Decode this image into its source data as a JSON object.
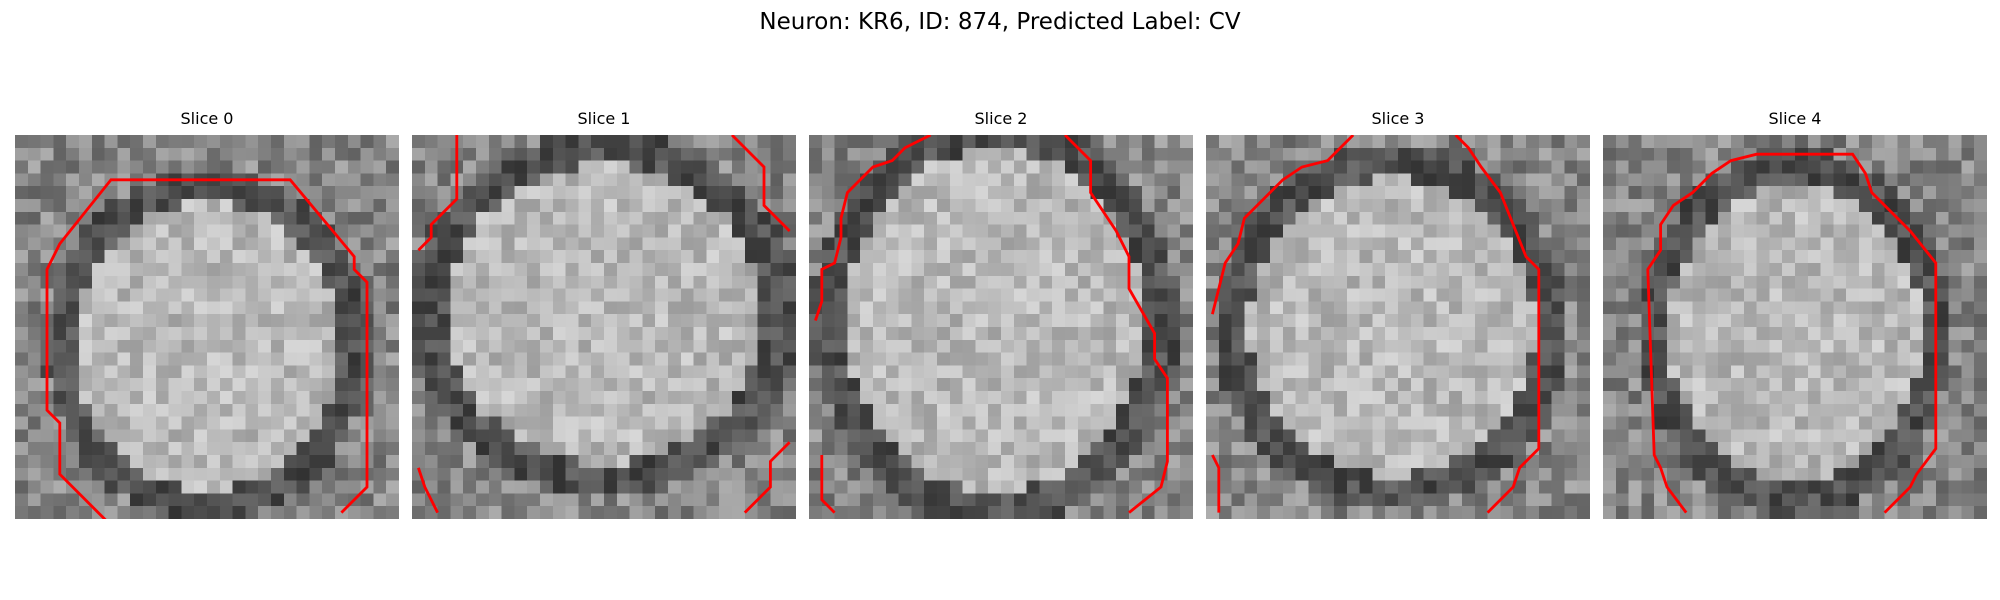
{
  "figure": {
    "title": "Neuron: KR6, ID: 874, Predicted Label: CV"
  },
  "slices": [
    {
      "title": "Slice 0",
      "boundary_color": "#ff0000",
      "contours": [
        [
          [
            7.5,
            30.5
          ],
          [
            3.5,
            26.5
          ],
          [
            3.5,
            22.5
          ],
          [
            2.5,
            21.5
          ],
          [
            2.5,
            10.5
          ],
          [
            3.5,
            8.5
          ],
          [
            7.5,
            3.5
          ],
          [
            21.5,
            3.5
          ],
          [
            26.5,
            9.5
          ],
          [
            26.5,
            10.5
          ],
          [
            27.5,
            11.5
          ],
          [
            27.5,
            27.5
          ],
          [
            25.5,
            29.5
          ]
        ]
      ]
    },
    {
      "title": "Slice 1",
      "boundary_color": "#ff0000",
      "contours": [
        [
          [
            0.5,
            9.0
          ],
          [
            1.5,
            8.0
          ],
          [
            1.5,
            7.0
          ],
          [
            2.5,
            6.0
          ],
          [
            3.5,
            5.0
          ],
          [
            3.5,
            0.0
          ]
        ],
        [
          [
            25.0,
            0.0
          ],
          [
            27.5,
            2.5
          ],
          [
            27.5,
            5.5
          ],
          [
            29.5,
            7.5
          ]
        ],
        [
          [
            0.5,
            26.0
          ],
          [
            1.0,
            27.5
          ],
          [
            2.0,
            29.5
          ]
        ],
        [
          [
            26.0,
            29.5
          ],
          [
            28.0,
            27.5
          ],
          [
            28.0,
            25.5
          ],
          [
            29.5,
            24.0
          ]
        ]
      ]
    },
    {
      "title": "Slice 2",
      "boundary_color": "#ff0000",
      "contours": [
        [
          [
            0.5,
            14.5
          ],
          [
            1.0,
            13.0
          ],
          [
            1.0,
            10.5
          ],
          [
            2.0,
            10.0
          ],
          [
            2.5,
            8.0
          ],
          [
            2.5,
            6.5
          ],
          [
            3.0,
            4.5
          ],
          [
            4.0,
            3.5
          ],
          [
            5.0,
            2.5
          ],
          [
            6.5,
            2.0
          ],
          [
            7.5,
            1.0
          ],
          [
            9.5,
            0.0
          ]
        ],
        [
          [
            20.0,
            0.0
          ],
          [
            22.0,
            2.0
          ],
          [
            22.0,
            4.5
          ],
          [
            24.0,
            7.5
          ],
          [
            25.0,
            9.5
          ],
          [
            25.0,
            12.0
          ],
          [
            27.0,
            15.5
          ],
          [
            27.0,
            17.5
          ],
          [
            28.0,
            19.0
          ],
          [
            28.0,
            25.5
          ],
          [
            27.5,
            27.5
          ],
          [
            25.0,
            29.5
          ]
        ],
        [
          [
            1.0,
            25.0
          ],
          [
            1.0,
            28.5
          ],
          [
            2.0,
            29.5
          ]
        ]
      ]
    },
    {
      "title": "Slice 3",
      "boundary_color": "#ff0000",
      "contours": [
        [
          [
            0.5,
            14.0
          ],
          [
            1.0,
            12.0
          ],
          [
            1.5,
            10.0
          ],
          [
            2.5,
            8.5
          ],
          [
            3.0,
            6.5
          ],
          [
            4.5,
            5.0
          ],
          [
            6.0,
            3.5
          ],
          [
            7.5,
            2.5
          ],
          [
            9.5,
            2.0
          ],
          [
            10.5,
            1.0
          ],
          [
            11.5,
            0.0
          ]
        ],
        [
          [
            19.5,
            0.0
          ],
          [
            20.5,
            1.0
          ],
          [
            21.5,
            2.5
          ],
          [
            23.0,
            4.5
          ],
          [
            24.0,
            7.0
          ],
          [
            25.0,
            9.5
          ],
          [
            26.0,
            10.5
          ],
          [
            26.0,
            24.5
          ],
          [
            24.5,
            26.0
          ],
          [
            24.0,
            27.5
          ],
          [
            22.0,
            29.5
          ]
        ],
        [
          [
            0.5,
            25.0
          ],
          [
            1.0,
            26.0
          ],
          [
            1.0,
            29.5
          ]
        ]
      ]
    },
    {
      "title": "Slice 4",
      "boundary_color": "#ff0000",
      "contours": [
        [
          [
            6.5,
            29.5
          ],
          [
            5.0,
            27.5
          ],
          [
            4.5,
            26.0
          ],
          [
            4.0,
            25.0
          ],
          [
            3.5,
            10.5
          ],
          [
            4.5,
            9.0
          ],
          [
            4.5,
            7.0
          ],
          [
            5.5,
            5.5
          ],
          [
            7.0,
            4.5
          ],
          [
            8.5,
            3.0
          ],
          [
            10.0,
            2.0
          ],
          [
            12.0,
            1.5
          ],
          [
            19.5,
            1.5
          ],
          [
            20.5,
            3.0
          ],
          [
            21.0,
            4.5
          ],
          [
            24.0,
            7.5
          ],
          [
            26.0,
            10.0
          ],
          [
            26.0,
            24.5
          ],
          [
            24.5,
            26.5
          ],
          [
            24.0,
            27.5
          ],
          [
            22.0,
            29.5
          ]
        ]
      ]
    }
  ]
}
